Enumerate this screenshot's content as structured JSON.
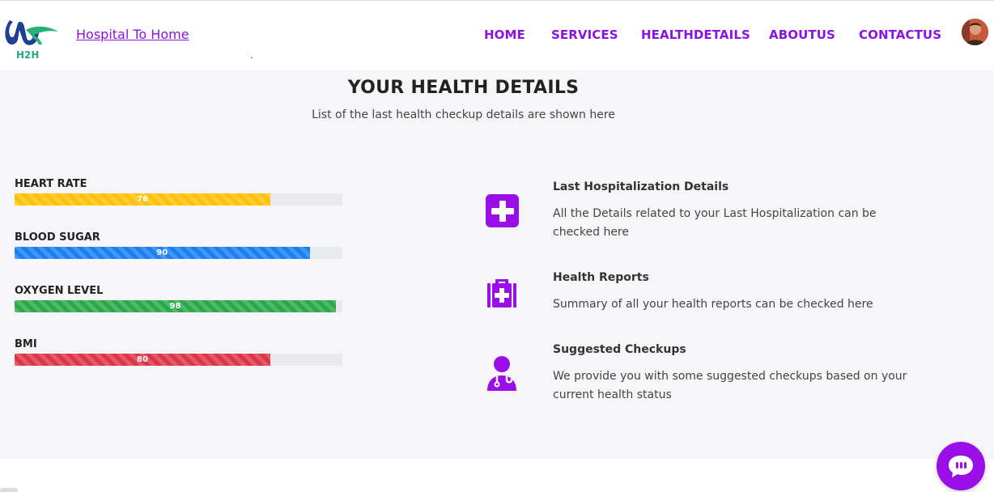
{
  "header": {
    "logo_text": "H2H",
    "brand": "Hospital To Home",
    "dot": ".",
    "nav": [
      {
        "label": "HOME"
      },
      {
        "label": "SERVICES"
      },
      {
        "label": "HEALTHDETAILS"
      },
      {
        "label": "ABOUTUS"
      },
      {
        "label": "CONTACTUS"
      }
    ]
  },
  "main": {
    "title": "YOUR HEALTH DETAILS",
    "subtitle": "List of the last health checkup details are shown here",
    "metrics": [
      {
        "label": "HEART RATE",
        "value": "76",
        "fill_percent": 78,
        "color": "#ffc107"
      },
      {
        "label": "BLOOD SUGAR",
        "value": "90",
        "fill_percent": 90,
        "color": "#1a7ff0"
      },
      {
        "label": "OXYGEN LEVEL",
        "value": "98",
        "fill_percent": 98,
        "color": "#2ba84a"
      },
      {
        "label": "BMI",
        "value": "80",
        "fill_percent": 78,
        "color": "#dc3545"
      }
    ],
    "features": [
      {
        "icon": "medical-cross-icon",
        "title": "Last  Hospitalization  Details",
        "desc": "All the Details related to your Last Hospitalization can be checked here"
      },
      {
        "icon": "first-aid-kit-icon",
        "title": "Health  Reports",
        "desc": "Summary of all your health reports can be checked here"
      },
      {
        "icon": "doctor-icon",
        "title": "Suggested  Checkups",
        "desc": "We provide you with some suggested checkups based on your current health status"
      }
    ]
  },
  "colors": {
    "accent": "#8a12e6",
    "chat_button": "#9a0fe8",
    "background": "#f6f6f8"
  }
}
